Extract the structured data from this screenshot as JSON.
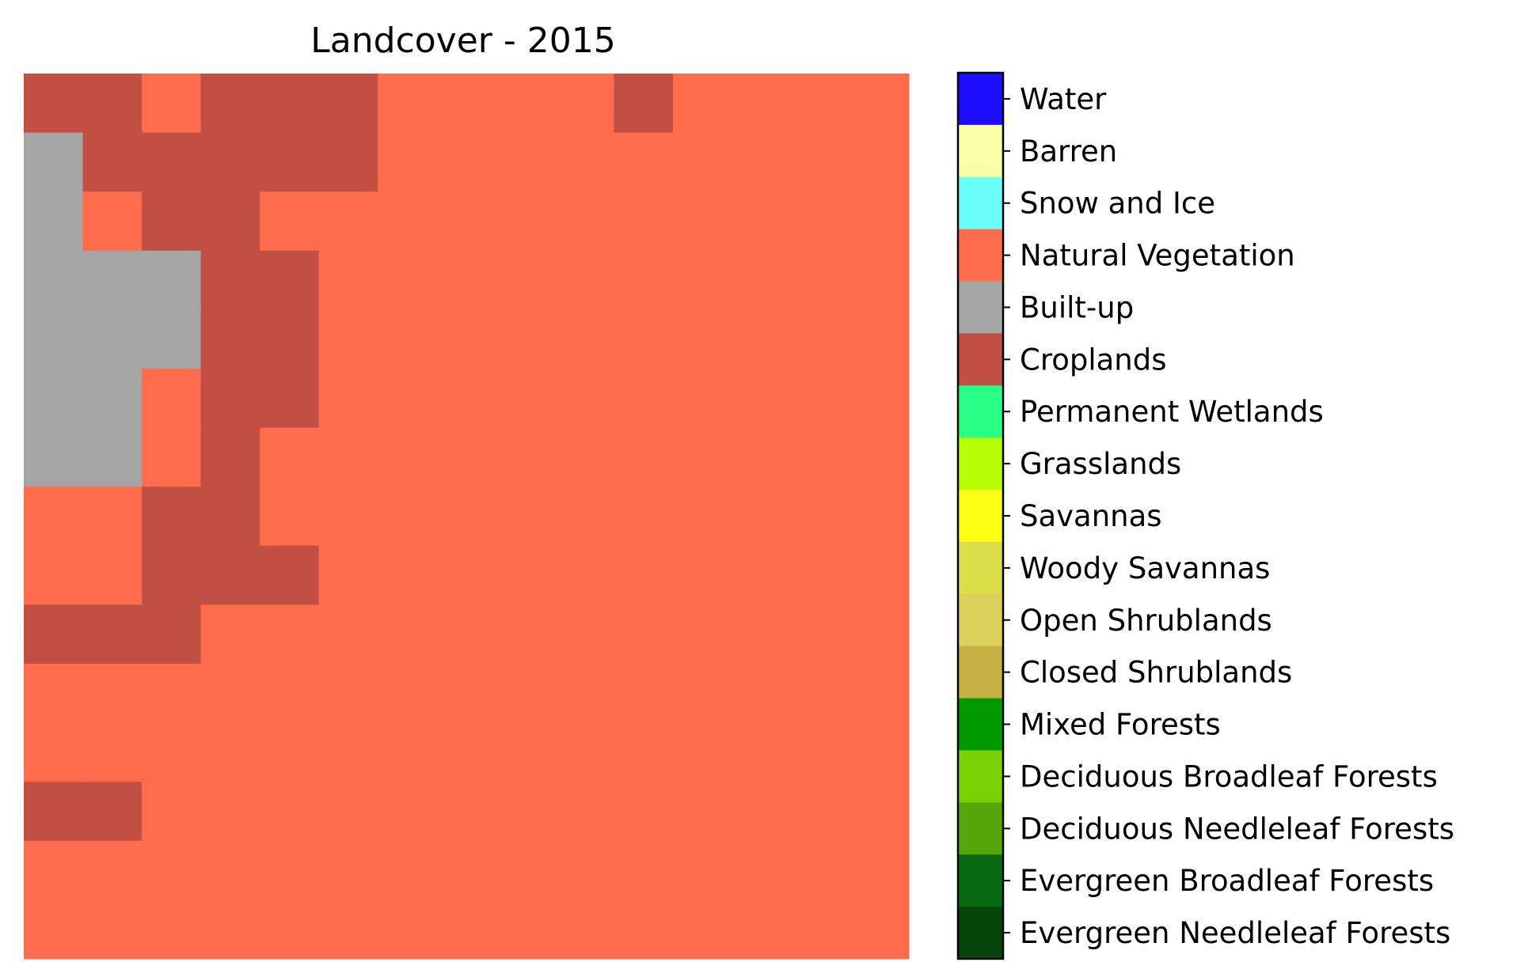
{
  "chart_data": {
    "type": "heatmap",
    "title": "Landcover - 2015",
    "xlabel": "",
    "ylabel": "",
    "axes_visible": false,
    "grid": false,
    "legend_placement": "right colorbar",
    "categories": [
      {
        "label": "Evergreen Needleleaf Forests",
        "color": "#05450a"
      },
      {
        "label": "Evergreen Broadleaf Forests",
        "color": "#086a10"
      },
      {
        "label": "Deciduous Needleleaf Forests",
        "color": "#54a708"
      },
      {
        "label": "Deciduous Broadleaf Forests",
        "color": "#78d203"
      },
      {
        "label": "Mixed Forests",
        "color": "#009900"
      },
      {
        "label": "Closed Shrublands",
        "color": "#c6b044"
      },
      {
        "label": "Open Shrublands",
        "color": "#dcd159"
      },
      {
        "label": "Woody Savannas",
        "color": "#dade48"
      },
      {
        "label": "Savannas",
        "color": "#fbff13"
      },
      {
        "label": "Grasslands",
        "color": "#b6ff05"
      },
      {
        "label": "Permanent Wetlands",
        "color": "#27ff87"
      },
      {
        "label": "Croplands",
        "color": "#c24f44"
      },
      {
        "label": "Built-up",
        "color": "#a5a5a5"
      },
      {
        "label": "Natural Vegetation",
        "color": "#ff6d4c"
      },
      {
        "label": "Snow and Ice",
        "color": "#69fff8"
      },
      {
        "label": "Barren",
        "color": "#f9ffa4"
      },
      {
        "label": "Water",
        "color": "#1c0dff"
      }
    ],
    "grid_values": [
      [
        11,
        11,
        13,
        11,
        11,
        11,
        13,
        13,
        13,
        13,
        11,
        13,
        13,
        13,
        13
      ],
      [
        12,
        11,
        11,
        11,
        11,
        11,
        13,
        13,
        13,
        13,
        13,
        13,
        13,
        13,
        13
      ],
      [
        12,
        13,
        11,
        11,
        13,
        13,
        13,
        13,
        13,
        13,
        13,
        13,
        13,
        13,
        13
      ],
      [
        12,
        12,
        12,
        11,
        11,
        13,
        13,
        13,
        13,
        13,
        13,
        13,
        13,
        13,
        13
      ],
      [
        12,
        12,
        12,
        11,
        11,
        13,
        13,
        13,
        13,
        13,
        13,
        13,
        13,
        13,
        13
      ],
      [
        12,
        12,
        13,
        11,
        11,
        13,
        13,
        13,
        13,
        13,
        13,
        13,
        13,
        13,
        13
      ],
      [
        12,
        12,
        13,
        11,
        13,
        13,
        13,
        13,
        13,
        13,
        13,
        13,
        13,
        13,
        13
      ],
      [
        13,
        13,
        11,
        11,
        13,
        13,
        13,
        13,
        13,
        13,
        13,
        13,
        13,
        13,
        13
      ],
      [
        13,
        13,
        11,
        11,
        11,
        13,
        13,
        13,
        13,
        13,
        13,
        13,
        13,
        13,
        13
      ],
      [
        11,
        11,
        11,
        13,
        13,
        13,
        13,
        13,
        13,
        13,
        13,
        13,
        13,
        13,
        13
      ],
      [
        13,
        13,
        13,
        13,
        13,
        13,
        13,
        13,
        13,
        13,
        13,
        13,
        13,
        13,
        13
      ],
      [
        13,
        13,
        13,
        13,
        13,
        13,
        13,
        13,
        13,
        13,
        13,
        13,
        13,
        13,
        13
      ],
      [
        11,
        11,
        13,
        13,
        13,
        13,
        13,
        13,
        13,
        13,
        13,
        13,
        13,
        13,
        13
      ],
      [
        13,
        13,
        13,
        13,
        13,
        13,
        13,
        13,
        13,
        13,
        13,
        13,
        13,
        13,
        13
      ],
      [
        13,
        13,
        13,
        13,
        13,
        13,
        13,
        13,
        13,
        13,
        13,
        13,
        13,
        13,
        13
      ]
    ]
  }
}
